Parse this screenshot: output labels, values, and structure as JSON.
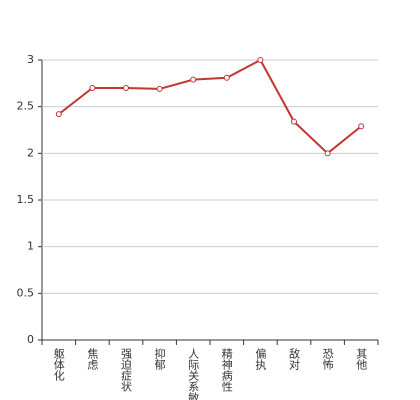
{
  "chart_data": {
    "type": "line",
    "categories": [
      "躯体化",
      "焦虑",
      "强迫症状",
      "抑郁",
      "人际关系敏感",
      "精神病性",
      "偏执",
      "敌对",
      "恐怖",
      "其他"
    ],
    "series": [
      {
        "color": "#c23531",
        "values": [
          2.42,
          2.7,
          2.7,
          2.69,
          2.79,
          2.81,
          3.0,
          2.34,
          2.0,
          2.29
        ]
      }
    ],
    "ylim": [
      0,
      3
    ],
    "yticks": [
      0,
      0.5,
      1,
      1.5,
      2,
      2.5,
      3
    ],
    "grid": true
  }
}
